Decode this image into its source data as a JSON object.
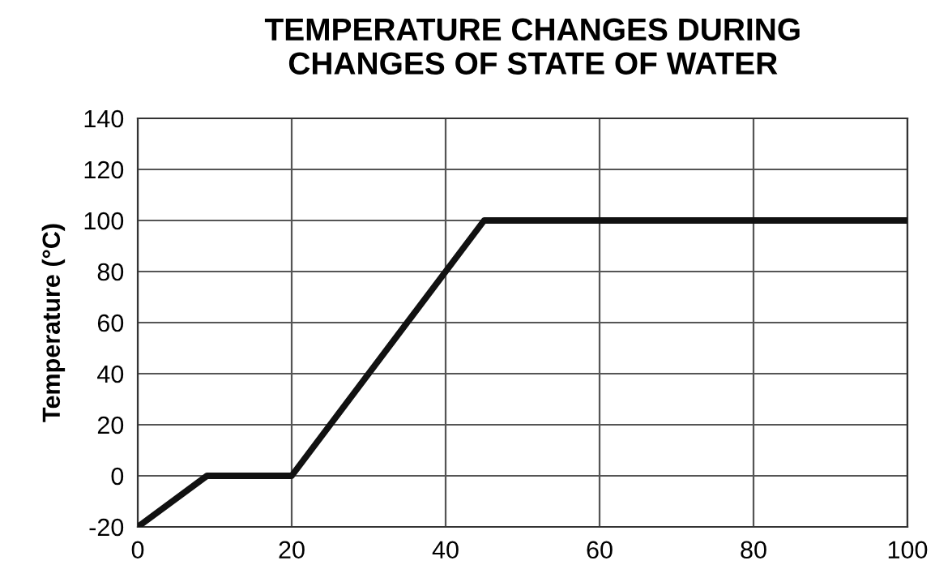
{
  "chart_data": {
    "type": "line",
    "title": "TEMPERATURE CHANGES DURING\nCHANGES OF STATE OF WATER",
    "ylabel": "Temperature (°C)",
    "x": [
      0,
      9,
      20,
      45,
      100
    ],
    "series": [
      {
        "color": "#111111",
        "values": [
          -20,
          0,
          0,
          100,
          100
        ]
      }
    ],
    "xlim": [
      0,
      100
    ],
    "xticks": [
      0,
      20,
      40,
      60,
      80,
      100
    ],
    "ylim": [
      -20,
      140
    ],
    "yticks": [
      -20,
      0,
      20,
      40,
      60,
      80,
      100,
      120,
      140
    ],
    "grid": true,
    "marker": "none",
    "line_style": "solid",
    "legend": false
  }
}
